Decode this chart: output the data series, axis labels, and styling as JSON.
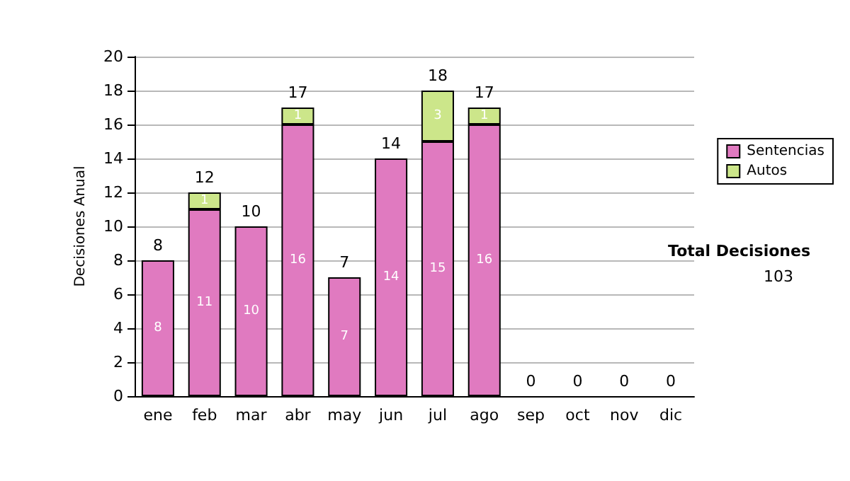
{
  "chart_data": {
    "type": "bar",
    "stacked": true,
    "ylabel": "Decisiones Anual",
    "categories": [
      "ene",
      "feb",
      "mar",
      "abr",
      "may",
      "jun",
      "jul",
      "ago",
      "sep",
      "oct",
      "nov",
      "dic"
    ],
    "series": [
      {
        "name": "Sentencias",
        "color": "#e07ac0",
        "values": [
          8,
          11,
          10,
          16,
          7,
          14,
          15,
          16,
          0,
          0,
          0,
          0
        ],
        "value_labels": [
          "8",
          "11",
          "10",
          "16",
          "7",
          "14",
          "15",
          "16",
          null,
          null,
          null,
          null
        ]
      },
      {
        "name": "Autos",
        "color": "#cce68a",
        "values": [
          0,
          1,
          0,
          1,
          0,
          0,
          3,
          1,
          0,
          0,
          0,
          0
        ],
        "value_labels": [
          null,
          "1",
          null,
          "1",
          null,
          null,
          "3",
          "1",
          null,
          null,
          null,
          null
        ]
      }
    ],
    "totals": [
      "8",
      "12",
      "10",
      "17",
      "7",
      "14",
      "18",
      "17",
      "0",
      "0",
      "0",
      "0"
    ],
    "ylim": [
      0,
      20
    ],
    "yticks": [
      0,
      2,
      4,
      6,
      8,
      10,
      12,
      14,
      16,
      18,
      20
    ],
    "grid": "y",
    "legend": "right",
    "annotations": [
      "Total Decisiones",
      "103"
    ]
  }
}
